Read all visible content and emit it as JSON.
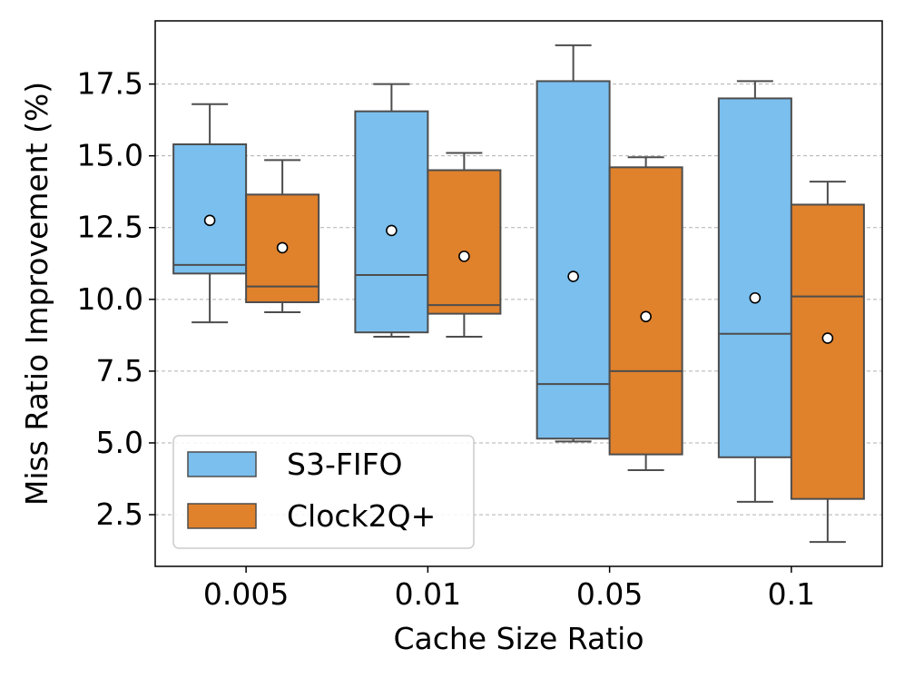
{
  "chart_data": {
    "type": "box",
    "title": "",
    "xlabel": "Cache Size Ratio",
    "ylabel": "Miss Ratio Improvement (%)",
    "categories": [
      "0.005",
      "0.01",
      "0.05",
      "0.1"
    ],
    "ylim": [
      0.7,
      19.7
    ],
    "yticks": [
      2.5,
      5.0,
      7.5,
      10.0,
      12.5,
      15.0,
      17.5
    ],
    "ytick_labels": [
      "2.5",
      "5.0",
      "7.5",
      "10.0",
      "12.5",
      "15.0",
      "17.5"
    ],
    "grid": "y-dashed",
    "legend_position": "bottom-left",
    "series": [
      {
        "name": "S3-FIFO",
        "color": "#7ABFEE",
        "boxes": [
          {
            "whisker_low": 9.2,
            "q1": 10.9,
            "median": 11.2,
            "q3": 15.4,
            "whisker_high": 16.8,
            "mean": 12.75
          },
          {
            "whisker_low": 8.7,
            "q1": 8.85,
            "median": 10.85,
            "q3": 16.55,
            "whisker_high": 17.5,
            "mean": 12.4
          },
          {
            "whisker_low": 5.05,
            "q1": 5.15,
            "median": 7.05,
            "q3": 17.6,
            "whisker_high": 18.85,
            "mean": 10.8
          },
          {
            "whisker_low": 2.95,
            "q1": 4.5,
            "median": 8.8,
            "q3": 17.0,
            "whisker_high": 17.6,
            "mean": 10.05
          }
        ]
      },
      {
        "name": "Clock2Q+",
        "color": "#E0812C",
        "boxes": [
          {
            "whisker_low": 9.55,
            "q1": 9.9,
            "median": 10.45,
            "q3": 13.65,
            "whisker_high": 14.85,
            "mean": 11.8
          },
          {
            "whisker_low": 8.7,
            "q1": 9.5,
            "median": 9.8,
            "q3": 14.5,
            "whisker_high": 15.1,
            "mean": 11.5
          },
          {
            "whisker_low": 4.05,
            "q1": 4.6,
            "median": 7.5,
            "q3": 14.6,
            "whisker_high": 14.95,
            "mean": 9.4
          },
          {
            "whisker_low": 1.55,
            "q1": 3.05,
            "median": 10.1,
            "q3": 13.3,
            "whisker_high": 14.1,
            "mean": 8.65
          }
        ]
      }
    ]
  }
}
